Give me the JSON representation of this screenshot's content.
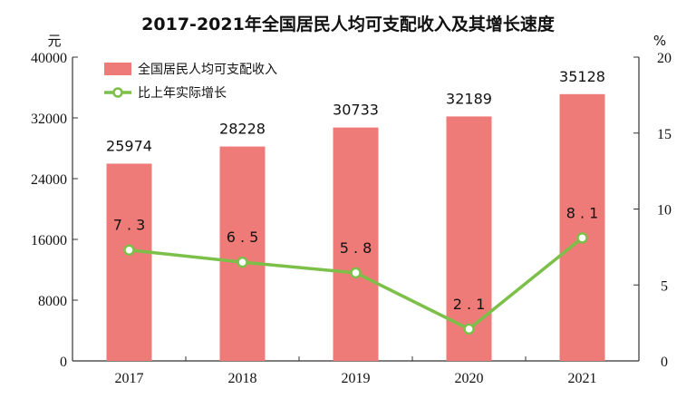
{
  "chart_data": {
    "type": "bar+line",
    "title": "2017-2021年全国居民人均可支配收入及其增长速度",
    "categories": [
      "2017",
      "2018",
      "2019",
      "2020",
      "2021"
    ],
    "series": [
      {
        "name": "全国居民人均可支配收入",
        "kind": "bar",
        "axis": "left",
        "values": [
          25974,
          28228,
          30733,
          32189,
          35128
        ],
        "labels": [
          "25974",
          "28228",
          "30733",
          "32189",
          "35128"
        ],
        "color": "#ee7b78"
      },
      {
        "name": "比上年实际增长",
        "kind": "line",
        "axis": "right",
        "values": [
          7.3,
          6.5,
          5.8,
          2.1,
          8.1
        ],
        "labels": [
          "7.3",
          "6.5",
          "5.8",
          "2.1",
          "8.1"
        ],
        "color": "#7cc04a"
      }
    ],
    "left_axis": {
      "unit": "元",
      "ylim": [
        0,
        40000
      ],
      "ticks": [
        0,
        8000,
        16000,
        24000,
        32000,
        40000
      ],
      "tick_labels": [
        "0",
        "8000",
        "16000",
        "24000",
        "32000",
        "40000"
      ]
    },
    "right_axis": {
      "unit": "%",
      "ylim": [
        0,
        20
      ],
      "ticks": [
        0,
        5,
        10,
        15,
        20
      ],
      "tick_labels": [
        "0",
        "5",
        "10",
        "15",
        "20"
      ]
    },
    "legend_position": "top-left",
    "grid": false
  }
}
